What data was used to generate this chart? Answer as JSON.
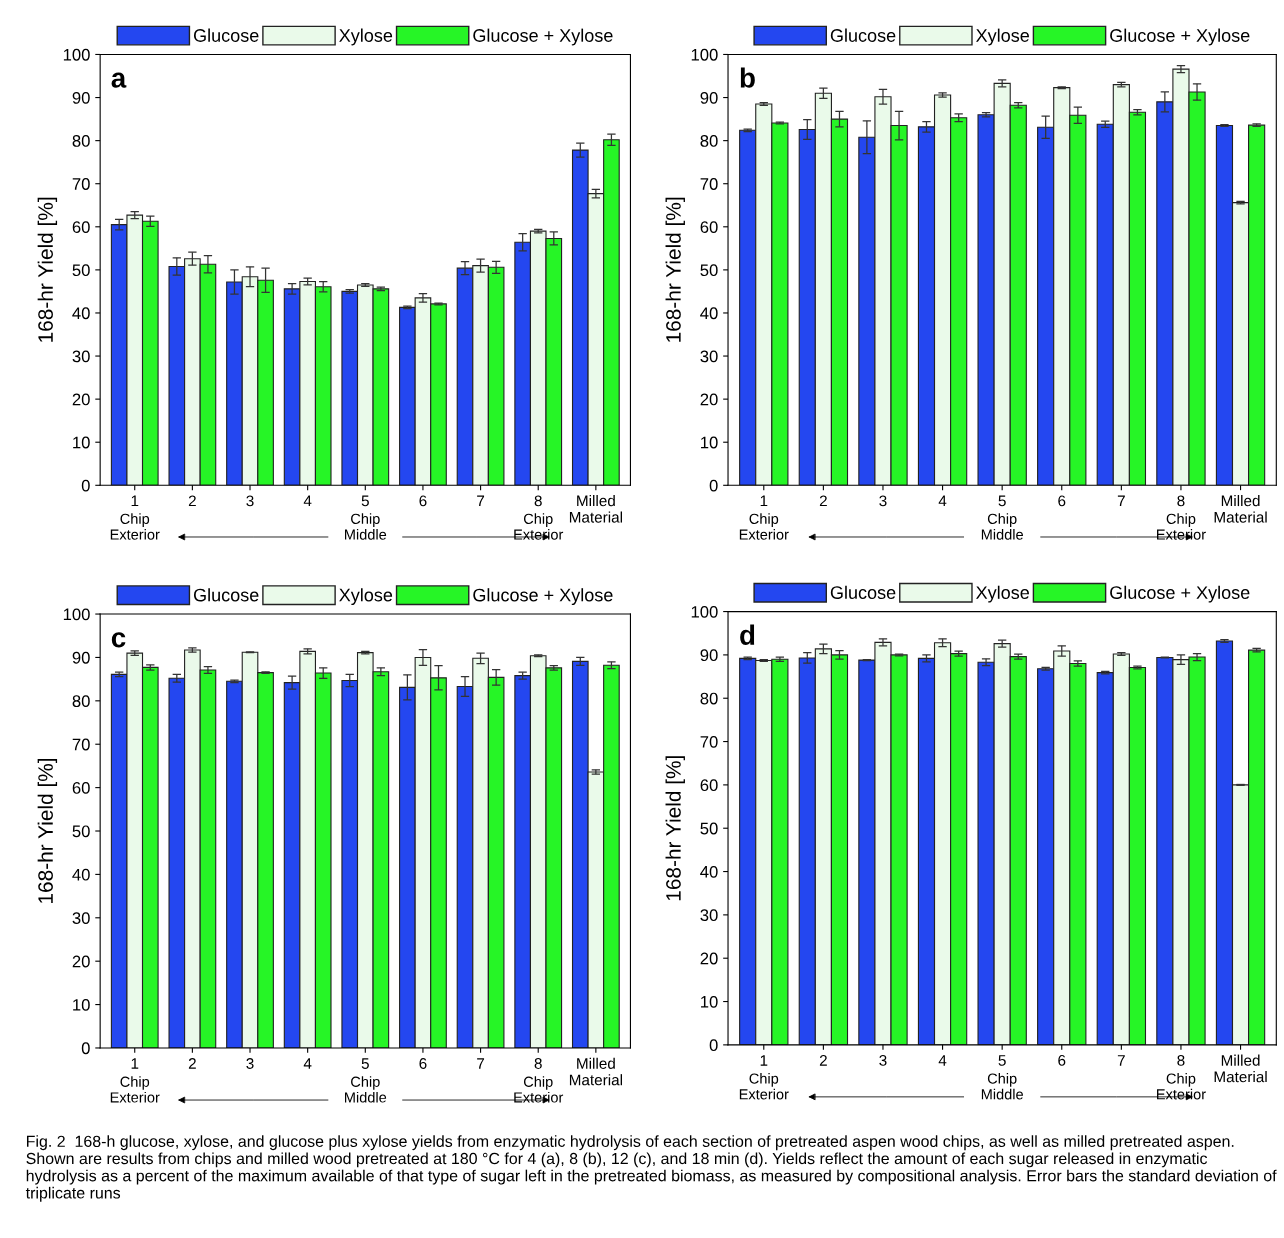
{
  "chart_data": [
    {
      "type": "bar",
      "title": "a",
      "ylabel": "168-hr Yield [%]",
      "categories": [
        "1",
        "2",
        "3",
        "4",
        "5",
        "6",
        "7",
        "8",
        "Milled\nMaterial"
      ],
      "ylim": [
        0,
        100
      ],
      "yticks": [
        0,
        10,
        20,
        30,
        40,
        50,
        60,
        70,
        80,
        90,
        100
      ],
      "legend": "top",
      "grid": false,
      "series": [
        {
          "name": "Glucose",
          "color": "#2447f0",
          "values": [
            60.5,
            50.8,
            47.2,
            45.6,
            45.0,
            41.3,
            50.4,
            56.4,
            77.8
          ],
          "errors": [
            1.2,
            2.0,
            2.8,
            1.2,
            0.4,
            0.3,
            1.5,
            2.0,
            1.6
          ]
        },
        {
          "name": "Xylose",
          "color": "#eafaea",
          "values": [
            62.7,
            52.6,
            48.4,
            47.3,
            46.5,
            43.5,
            51.0,
            59.0,
            67.7
          ],
          "errors": [
            0.8,
            1.5,
            2.3,
            0.8,
            0.3,
            1.0,
            1.5,
            0.4,
            1.0
          ]
        },
        {
          "name": "Glucose + Xylose",
          "color": "#26f526",
          "values": [
            61.3,
            51.3,
            47.6,
            46.1,
            45.6,
            42.1,
            50.6,
            57.3,
            80.2
          ],
          "errors": [
            1.2,
            2.0,
            2.8,
            1.2,
            0.4,
            0.2,
            1.4,
            1.5,
            1.3
          ]
        }
      ],
      "annotations": [
        "Chip\nExterior",
        "Chip\nMiddle",
        "Chip\nExterior"
      ]
    },
    {
      "type": "bar",
      "title": "b",
      "ylabel": "168-hr Yield [%]",
      "categories": [
        "1",
        "2",
        "3",
        "4",
        "5",
        "6",
        "7",
        "8",
        "Milled\nMaterial"
      ],
      "ylim": [
        0,
        100
      ],
      "yticks": [
        0,
        10,
        20,
        30,
        40,
        50,
        60,
        70,
        80,
        90,
        100
      ],
      "legend": "top",
      "grid": false,
      "series": [
        {
          "name": "Glucose",
          "color": "#2447f0",
          "values": [
            82.4,
            82.6,
            80.8,
            83.2,
            86.0,
            83.1,
            83.8,
            89.0,
            83.5
          ],
          "errors": [
            0.3,
            2.3,
            3.8,
            1.2,
            0.5,
            2.6,
            0.7,
            2.3,
            0.2
          ]
        },
        {
          "name": "Xylose",
          "color": "#eafaea",
          "values": [
            88.5,
            91.0,
            90.2,
            90.6,
            93.3,
            92.3,
            93.0,
            96.6,
            65.6
          ],
          "errors": [
            0.3,
            1.2,
            1.7,
            0.5,
            0.8,
            0.2,
            0.5,
            0.8,
            0.3
          ]
        },
        {
          "name": "Glucose + Xylose",
          "color": "#26f526",
          "values": [
            84.1,
            85.0,
            83.5,
            85.3,
            88.2,
            85.9,
            86.6,
            91.3,
            83.6
          ],
          "errors": [
            0.2,
            1.8,
            3.3,
            0.9,
            0.6,
            1.9,
            0.6,
            1.9,
            0.3
          ]
        }
      ],
      "annotations": [
        "Chip\nExterior",
        "Chip\nMiddle",
        "Chip\nExterior"
      ]
    },
    {
      "type": "bar",
      "title": "c",
      "ylabel": "168-hr Yield [%]",
      "categories": [
        "1",
        "2",
        "3",
        "4",
        "5",
        "6",
        "7",
        "8",
        "Milled\nMaterial"
      ],
      "ylim": [
        0,
        100
      ],
      "yticks": [
        0,
        10,
        20,
        30,
        40,
        50,
        60,
        70,
        80,
        90,
        100
      ],
      "legend": "top",
      "grid": false,
      "series": [
        {
          "name": "Glucose",
          "color": "#2447f0",
          "values": [
            86.1,
            85.2,
            84.5,
            84.2,
            84.7,
            83.1,
            83.3,
            85.8,
            89.1
          ],
          "errors": [
            0.5,
            0.9,
            0.3,
            1.5,
            1.4,
            2.9,
            2.3,
            0.8,
            0.9
          ]
        },
        {
          "name": "Xylose",
          "color": "#eafaea",
          "values": [
            91.0,
            91.7,
            91.2,
            91.4,
            91.1,
            90.0,
            89.8,
            90.4,
            63.6
          ],
          "errors": [
            0.5,
            0.5,
            0.1,
            0.6,
            0.3,
            1.8,
            1.2,
            0.2,
            0.5
          ]
        },
        {
          "name": "Glucose + Xylose",
          "color": "#26f526",
          "values": [
            87.7,
            87.1,
            86.5,
            86.4,
            86.7,
            85.3,
            85.4,
            87.6,
            88.2
          ],
          "errors": [
            0.6,
            0.8,
            0.2,
            1.2,
            0.9,
            2.8,
            1.8,
            0.5,
            0.8
          ]
        }
      ],
      "annotations": [
        "Chip\nExterior",
        "Chip\nMiddle",
        "Chip\nExterior"
      ]
    },
    {
      "type": "bar",
      "title": "d",
      "ylabel": "168-hr Yield [%]",
      "categories": [
        "1",
        "2",
        "3",
        "4",
        "5",
        "6",
        "7",
        "8",
        "Milled\nMaterial"
      ],
      "ylim": [
        0,
        100
      ],
      "yticks": [
        0,
        10,
        20,
        30,
        40,
        50,
        60,
        70,
        80,
        90,
        100
      ],
      "legend": "top",
      "grid": false,
      "series": [
        {
          "name": "Glucose",
          "color": "#2447f0",
          "values": [
            89.2,
            89.3,
            88.8,
            89.2,
            88.3,
            86.8,
            85.9,
            89.4,
            93.2
          ],
          "errors": [
            0.3,
            1.2,
            0.1,
            0.8,
            0.8,
            0.3,
            0.3,
            0.1,
            0.3
          ]
        },
        {
          "name": "Xylose",
          "color": "#eafaea",
          "values": [
            88.7,
            91.4,
            92.9,
            92.8,
            92.6,
            90.9,
            90.2,
            88.9,
            60.0
          ],
          "errors": [
            0.2,
            1.1,
            0.8,
            0.9,
            0.8,
            1.2,
            0.3,
            1.1,
            0.1
          ]
        },
        {
          "name": "Glucose + Xylose",
          "color": "#26f526",
          "values": [
            89.0,
            90.0,
            90.0,
            90.3,
            89.6,
            88.0,
            87.1,
            89.5,
            91.1
          ],
          "errors": [
            0.5,
            1.0,
            0.2,
            0.6,
            0.6,
            0.6,
            0.3,
            0.8,
            0.4
          ]
        }
      ],
      "annotations": [
        "Chip\nExterior",
        "Chip\nMiddle",
        "Chip\nExterior",
        "Fig. 2  168-h glucose, xylose, and glucose plus xylose yields from enzymatic hydrolysis of each section of pretreated aspen wood chips, as well as milled pretreated aspen. Shown are results from chips and milled wood pretreated at 180 °C for 4 (a), 8 (b), 12 (c), and 18 min (d). Yields reflect the amount of each sugar released in enzymatic hydrolysis as a percent of the maximum available of that type of sugar left in the pretreated biomass, as measured by compositional analysis. Error bars the standard deviation of triplicate runs"
      ]
    }
  ]
}
